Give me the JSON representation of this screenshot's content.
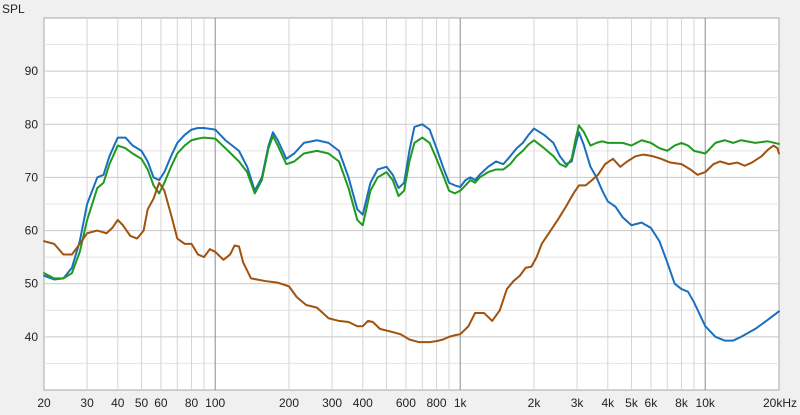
{
  "chart_data": {
    "type": "line",
    "title": "",
    "ylabel": "SPL",
    "xlabel": "",
    "xscale": "log",
    "xlim": [
      20,
      20000
    ],
    "ylim": [
      30,
      100
    ],
    "grid": true,
    "legend": "none",
    "x_ticks": [
      {
        "value": 20,
        "label": "20"
      },
      {
        "value": 30,
        "label": "30"
      },
      {
        "value": 40,
        "label": "40"
      },
      {
        "value": 50,
        "label": "50"
      },
      {
        "value": 60,
        "label": "60"
      },
      {
        "value": 80,
        "label": "80"
      },
      {
        "value": 100,
        "label": "100"
      },
      {
        "value": 200,
        "label": "200"
      },
      {
        "value": 300,
        "label": "300"
      },
      {
        "value": 400,
        "label": "400"
      },
      {
        "value": 600,
        "label": "600"
      },
      {
        "value": 800,
        "label": "800"
      },
      {
        "value": 1000,
        "label": "1k"
      },
      {
        "value": 2000,
        "label": "2k"
      },
      {
        "value": 3000,
        "label": "3k"
      },
      {
        "value": 4000,
        "label": "4k"
      },
      {
        "value": 5000,
        "label": "5k"
      },
      {
        "value": 6000,
        "label": "6k"
      },
      {
        "value": 8000,
        "label": "8k"
      },
      {
        "value": 10000,
        "label": "10k"
      },
      {
        "value": 20000,
        "label": "20kHz"
      }
    ],
    "y_ticks": [
      {
        "value": 40,
        "label": "40"
      },
      {
        "value": 50,
        "label": "50"
      },
      {
        "value": 60,
        "label": "60"
      },
      {
        "value": 70,
        "label": "70"
      },
      {
        "value": 80,
        "label": "80"
      },
      {
        "value": 90,
        "label": "90"
      }
    ],
    "series": [
      {
        "color": "#1a6fc0",
        "points": [
          [
            20,
            51.5
          ],
          [
            22,
            50.8
          ],
          [
            24,
            51
          ],
          [
            26,
            53
          ],
          [
            28,
            58
          ],
          [
            30,
            65
          ],
          [
            33,
            70
          ],
          [
            35,
            70.5
          ],
          [
            37,
            74
          ],
          [
            40,
            77.5
          ],
          [
            43,
            77.5
          ],
          [
            46,
            76
          ],
          [
            50,
            75
          ],
          [
            53,
            73
          ],
          [
            56,
            70
          ],
          [
            59,
            69.5
          ],
          [
            62,
            71
          ],
          [
            66,
            74
          ],
          [
            70,
            76.5
          ],
          [
            75,
            78
          ],
          [
            80,
            79
          ],
          [
            85,
            79.3
          ],
          [
            90,
            79.3
          ],
          [
            100,
            79
          ],
          [
            110,
            77
          ],
          [
            125,
            75
          ],
          [
            135,
            72
          ],
          [
            145,
            67.5
          ],
          [
            155,
            70
          ],
          [
            165,
            76
          ],
          [
            172,
            78.5
          ],
          [
            180,
            77
          ],
          [
            195,
            73.5
          ],
          [
            210,
            74.5
          ],
          [
            230,
            76.5
          ],
          [
            260,
            77
          ],
          [
            290,
            76.5
          ],
          [
            320,
            75
          ],
          [
            350,
            70
          ],
          [
            380,
            64
          ],
          [
            400,
            63
          ],
          [
            430,
            69
          ],
          [
            460,
            71.5
          ],
          [
            500,
            72
          ],
          [
            530,
            70.5
          ],
          [
            560,
            68
          ],
          [
            590,
            69
          ],
          [
            620,
            75
          ],
          [
            650,
            79.5
          ],
          [
            700,
            80
          ],
          [
            750,
            79
          ],
          [
            800,
            75.5
          ],
          [
            850,
            72
          ],
          [
            900,
            69
          ],
          [
            950,
            68.5
          ],
          [
            1000,
            68.2
          ],
          [
            1050,
            69.5
          ],
          [
            1100,
            70
          ],
          [
            1150,
            69.5
          ],
          [
            1200,
            70.5
          ],
          [
            1300,
            72
          ],
          [
            1400,
            73
          ],
          [
            1500,
            72.5
          ],
          [
            1600,
            74
          ],
          [
            1700,
            75.5
          ],
          [
            1800,
            76.5
          ],
          [
            1900,
            78
          ],
          [
            2000,
            79.2
          ],
          [
            2200,
            78
          ],
          [
            2400,
            76.5
          ],
          [
            2550,
            74
          ],
          [
            2700,
            72.5
          ],
          [
            2850,
            73
          ],
          [
            2950,
            76
          ],
          [
            3050,
            78.5
          ],
          [
            3200,
            76
          ],
          [
            3400,
            72
          ],
          [
            3600,
            70
          ],
          [
            3800,
            67.5
          ],
          [
            4000,
            65.5
          ],
          [
            4300,
            64.5
          ],
          [
            4600,
            62.5
          ],
          [
            5000,
            61
          ],
          [
            5500,
            61.5
          ],
          [
            6000,
            60.5
          ],
          [
            6500,
            58
          ],
          [
            7000,
            54
          ],
          [
            7500,
            50
          ],
          [
            8000,
            49
          ],
          [
            8500,
            48.5
          ],
          [
            9000,
            46.5
          ],
          [
            10000,
            42
          ],
          [
            11000,
            40
          ],
          [
            12000,
            39.3
          ],
          [
            13000,
            39.3
          ],
          [
            14000,
            40
          ],
          [
            16000,
            41.5
          ],
          [
            18000,
            43.2
          ],
          [
            20000,
            44.8
          ]
        ]
      },
      {
        "color": "#1f9a1f",
        "points": [
          [
            20,
            52
          ],
          [
            22,
            51
          ],
          [
            24,
            51
          ],
          [
            26,
            52
          ],
          [
            28,
            56
          ],
          [
            30,
            62
          ],
          [
            33,
            68
          ],
          [
            35,
            69
          ],
          [
            37,
            72.5
          ],
          [
            40,
            76
          ],
          [
            43,
            75.5
          ],
          [
            46,
            74.5
          ],
          [
            50,
            73.5
          ],
          [
            53,
            71.5
          ],
          [
            56,
            68.5
          ],
          [
            59,
            67
          ],
          [
            62,
            69
          ],
          [
            66,
            72
          ],
          [
            70,
            74.5
          ],
          [
            75,
            76
          ],
          [
            80,
            77
          ],
          [
            85,
            77.3
          ],
          [
            90,
            77.5
          ],
          [
            100,
            77.3
          ],
          [
            110,
            75.5
          ],
          [
            125,
            73
          ],
          [
            135,
            71
          ],
          [
            145,
            67
          ],
          [
            155,
            69.5
          ],
          [
            165,
            75.5
          ],
          [
            172,
            77.8
          ],
          [
            180,
            76
          ],
          [
            195,
            72.5
          ],
          [
            210,
            73
          ],
          [
            230,
            74.5
          ],
          [
            260,
            75
          ],
          [
            290,
            74.5
          ],
          [
            320,
            73
          ],
          [
            350,
            68
          ],
          [
            380,
            62
          ],
          [
            400,
            61
          ],
          [
            430,
            67.5
          ],
          [
            460,
            70
          ],
          [
            500,
            71
          ],
          [
            530,
            69.5
          ],
          [
            560,
            66.5
          ],
          [
            590,
            67.5
          ],
          [
            620,
            73
          ],
          [
            650,
            76.5
          ],
          [
            700,
            77.5
          ],
          [
            750,
            76.5
          ],
          [
            800,
            73.5
          ],
          [
            850,
            70.5
          ],
          [
            900,
            67.5
          ],
          [
            950,
            67
          ],
          [
            1000,
            67.5
          ],
          [
            1050,
            68.5
          ],
          [
            1100,
            69.5
          ],
          [
            1150,
            69
          ],
          [
            1200,
            70
          ],
          [
            1300,
            71
          ],
          [
            1400,
            71.5
          ],
          [
            1500,
            71.5
          ],
          [
            1600,
            72.5
          ],
          [
            1700,
            74
          ],
          [
            1800,
            75
          ],
          [
            1900,
            76.2
          ],
          [
            2000,
            77
          ],
          [
            2200,
            75.5
          ],
          [
            2400,
            74
          ],
          [
            2550,
            72.5
          ],
          [
            2700,
            72
          ],
          [
            2850,
            73.5
          ],
          [
            2950,
            77
          ],
          [
            3050,
            79.8
          ],
          [
            3200,
            78.5
          ],
          [
            3400,
            76
          ],
          [
            3600,
            76.5
          ],
          [
            3800,
            76.8
          ],
          [
            4000,
            76.5
          ],
          [
            4300,
            76.5
          ],
          [
            4600,
            76.5
          ],
          [
            5000,
            76
          ],
          [
            5500,
            77
          ],
          [
            6000,
            76.5
          ],
          [
            6500,
            75.5
          ],
          [
            7000,
            75
          ],
          [
            7500,
            76
          ],
          [
            8000,
            76.5
          ],
          [
            8500,
            76
          ],
          [
            9000,
            75
          ],
          [
            10000,
            74.5
          ],
          [
            11000,
            76.5
          ],
          [
            12000,
            77
          ],
          [
            13000,
            76.5
          ],
          [
            14000,
            77
          ],
          [
            16000,
            76.5
          ],
          [
            18000,
            76.8
          ],
          [
            20000,
            76.3
          ]
        ]
      },
      {
        "color": "#a0520f",
        "points": [
          [
            20,
            58
          ],
          [
            22,
            57.5
          ],
          [
            24,
            55.5
          ],
          [
            26,
            55.5
          ],
          [
            28,
            57.5
          ],
          [
            30,
            59.5
          ],
          [
            33,
            60
          ],
          [
            36,
            59.5
          ],
          [
            38,
            60.5
          ],
          [
            40,
            62
          ],
          [
            42,
            61
          ],
          [
            45,
            59
          ],
          [
            48,
            58.5
          ],
          [
            51,
            60
          ],
          [
            53,
            64
          ],
          [
            56,
            66
          ],
          [
            59,
            69
          ],
          [
            62,
            67.5
          ],
          [
            66,
            63
          ],
          [
            70,
            58.5
          ],
          [
            75,
            57.5
          ],
          [
            80,
            57.5
          ],
          [
            85,
            55.5
          ],
          [
            90,
            55
          ],
          [
            95,
            56.5
          ],
          [
            100,
            56
          ],
          [
            108,
            54.5
          ],
          [
            115,
            55.5
          ],
          [
            120,
            57.2
          ],
          [
            125,
            57
          ],
          [
            130,
            54
          ],
          [
            140,
            51
          ],
          [
            160,
            50.5
          ],
          [
            180,
            50.2
          ],
          [
            200,
            49.5
          ],
          [
            215,
            47.5
          ],
          [
            235,
            46
          ],
          [
            260,
            45.5
          ],
          [
            290,
            43.5
          ],
          [
            320,
            43
          ],
          [
            350,
            42.8
          ],
          [
            380,
            42
          ],
          [
            400,
            42
          ],
          [
            420,
            43
          ],
          [
            440,
            42.8
          ],
          [
            470,
            41.5
          ],
          [
            520,
            41
          ],
          [
            570,
            40.5
          ],
          [
            620,
            39.5
          ],
          [
            680,
            39
          ],
          [
            750,
            39
          ],
          [
            800,
            39.2
          ],
          [
            850,
            39.5
          ],
          [
            900,
            40
          ],
          [
            950,
            40.3
          ],
          [
            1000,
            40.5
          ],
          [
            1080,
            42
          ],
          [
            1150,
            44.5
          ],
          [
            1250,
            44.5
          ],
          [
            1350,
            43
          ],
          [
            1450,
            45
          ],
          [
            1550,
            49
          ],
          [
            1650,
            50.5
          ],
          [
            1750,
            51.5
          ],
          [
            1850,
            53
          ],
          [
            1950,
            53.2
          ],
          [
            2050,
            55
          ],
          [
            2150,
            57.5
          ],
          [
            2300,
            59.5
          ],
          [
            2500,
            62
          ],
          [
            2700,
            64.5
          ],
          [
            2900,
            67
          ],
          [
            3050,
            68.5
          ],
          [
            3250,
            68.5
          ],
          [
            3450,
            69.5
          ],
          [
            3650,
            70.5
          ],
          [
            3900,
            72.5
          ],
          [
            4200,
            73.5
          ],
          [
            4500,
            72
          ],
          [
            4800,
            73
          ],
          [
            5200,
            74
          ],
          [
            5600,
            74.3
          ],
          [
            6100,
            74
          ],
          [
            6600,
            73.5
          ],
          [
            7200,
            72.8
          ],
          [
            8000,
            72.5
          ],
          [
            8700,
            71.5
          ],
          [
            9300,
            70.5
          ],
          [
            10000,
            71
          ],
          [
            10800,
            72.5
          ],
          [
            11500,
            73
          ],
          [
            12500,
            72.5
          ],
          [
            13500,
            72.8
          ],
          [
            14500,
            72.2
          ],
          [
            15500,
            72.8
          ],
          [
            17000,
            74
          ],
          [
            18000,
            75.2
          ],
          [
            19000,
            76
          ],
          [
            19700,
            75.5
          ],
          [
            20000,
            74.5
          ]
        ]
      }
    ]
  }
}
